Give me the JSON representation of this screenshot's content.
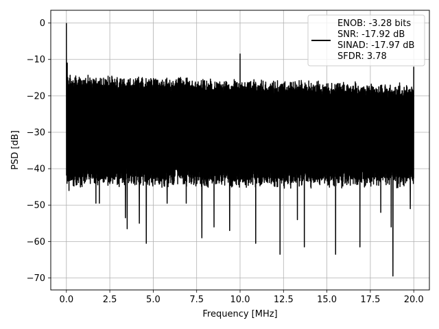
{
  "chart_data": {
    "type": "line",
    "title": "",
    "xlabel": "Frequency [MHz]",
    "ylabel": "PSD [dB]",
    "xlim": [
      -0.9,
      20.9
    ],
    "ylim": [
      -73.3,
      3.5
    ],
    "xticks": [
      0.0,
      2.5,
      5.0,
      7.5,
      10.0,
      12.5,
      15.0,
      17.5,
      20.0
    ],
    "xtick_labels": [
      "0.0",
      "2.5",
      "5.0",
      "7.5",
      "10.0",
      "12.5",
      "15.0",
      "17.5",
      "20.0"
    ],
    "yticks": [
      0,
      -10,
      -20,
      -30,
      -40,
      -50,
      -60,
      -70
    ],
    "ytick_labels": [
      "0",
      "−10",
      "−20",
      "−30",
      "−40",
      "−50",
      "−60",
      "−70"
    ],
    "grid": true,
    "legend": {
      "placement": "top-right",
      "lines": [
        "ENOB: -3.28 bits",
        "SNR: -17.92 dB",
        "SINAD: -17.97 dB",
        "SFDR: 3.78"
      ]
    },
    "series": [
      {
        "color": "#000000",
        "band": {
          "x_start": 0.0,
          "x_end": 20.0,
          "upper_typical": -15.5,
          "lower_typical": -40.5
        },
        "peaks": [
          {
            "x": 0.0,
            "y": 0.0
          },
          {
            "x": 0.05,
            "y": -11.0
          },
          {
            "x": 10.0,
            "y": -8.5
          },
          {
            "x": 20.0,
            "y": -12.0
          }
        ],
        "dips": [
          {
            "x": 0.15,
            "y": -46.0
          },
          {
            "x": 1.7,
            "y": -49.5
          },
          {
            "x": 1.9,
            "y": -49.5
          },
          {
            "x": 3.4,
            "y": -53.5
          },
          {
            "x": 3.5,
            "y": -56.5
          },
          {
            "x": 4.2,
            "y": -55.0
          },
          {
            "x": 4.6,
            "y": -60.5
          },
          {
            "x": 5.8,
            "y": -49.5
          },
          {
            "x": 6.9,
            "y": -49.5
          },
          {
            "x": 7.8,
            "y": -59.0
          },
          {
            "x": 8.5,
            "y": -56.0
          },
          {
            "x": 9.4,
            "y": -57.0
          },
          {
            "x": 10.9,
            "y": -60.5
          },
          {
            "x": 12.3,
            "y": -63.5
          },
          {
            "x": 13.3,
            "y": -54.0
          },
          {
            "x": 13.7,
            "y": -61.5
          },
          {
            "x": 15.5,
            "y": -63.5
          },
          {
            "x": 16.9,
            "y": -61.5
          },
          {
            "x": 18.1,
            "y": -52.0
          },
          {
            "x": 18.7,
            "y": -56.0
          },
          {
            "x": 18.8,
            "y": -69.5
          },
          {
            "x": 19.8,
            "y": -51.0
          }
        ]
      }
    ]
  }
}
